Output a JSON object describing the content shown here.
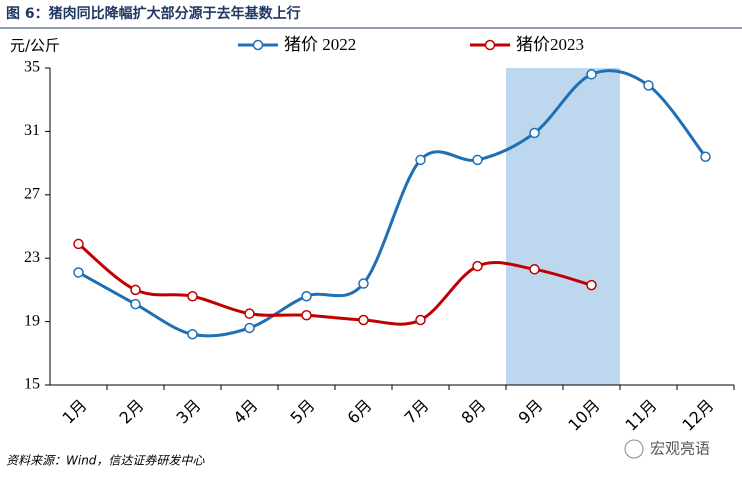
{
  "chart_data": {
    "type": "line",
    "title": "图 6：猪肉同比降幅扩大部分源于去年基数上行",
    "y_label": "元/公斤",
    "source": "资料来源：Wind，信达证券研发中心",
    "watermark": "宏观亮语",
    "categories": [
      "1月",
      "2月",
      "3月",
      "4月",
      "5月",
      "6月",
      "7月",
      "8月",
      "9月",
      "10月",
      "11月",
      "12月"
    ],
    "series": [
      {
        "name": "猪价 2022",
        "color": "#1f6fb5",
        "values": [
          22.1,
          20.1,
          18.2,
          18.6,
          20.6,
          21.4,
          29.2,
          29.2,
          30.9,
          34.6,
          33.9,
          29.4
        ]
      },
      {
        "name": "猪价2023",
        "color": "#c00000",
        "values": [
          23.9,
          21.0,
          20.6,
          19.5,
          19.4,
          19.1,
          19.1,
          22.5,
          22.3,
          21.3,
          null,
          null
        ]
      }
    ],
    "highlight_categories": [
      "9月",
      "10月"
    ],
    "highlight_color": "#bdd7ee",
    "ylim": [
      15,
      35
    ],
    "yticks": [
      15,
      19,
      23,
      27,
      31,
      35
    ],
    "grid": false
  }
}
